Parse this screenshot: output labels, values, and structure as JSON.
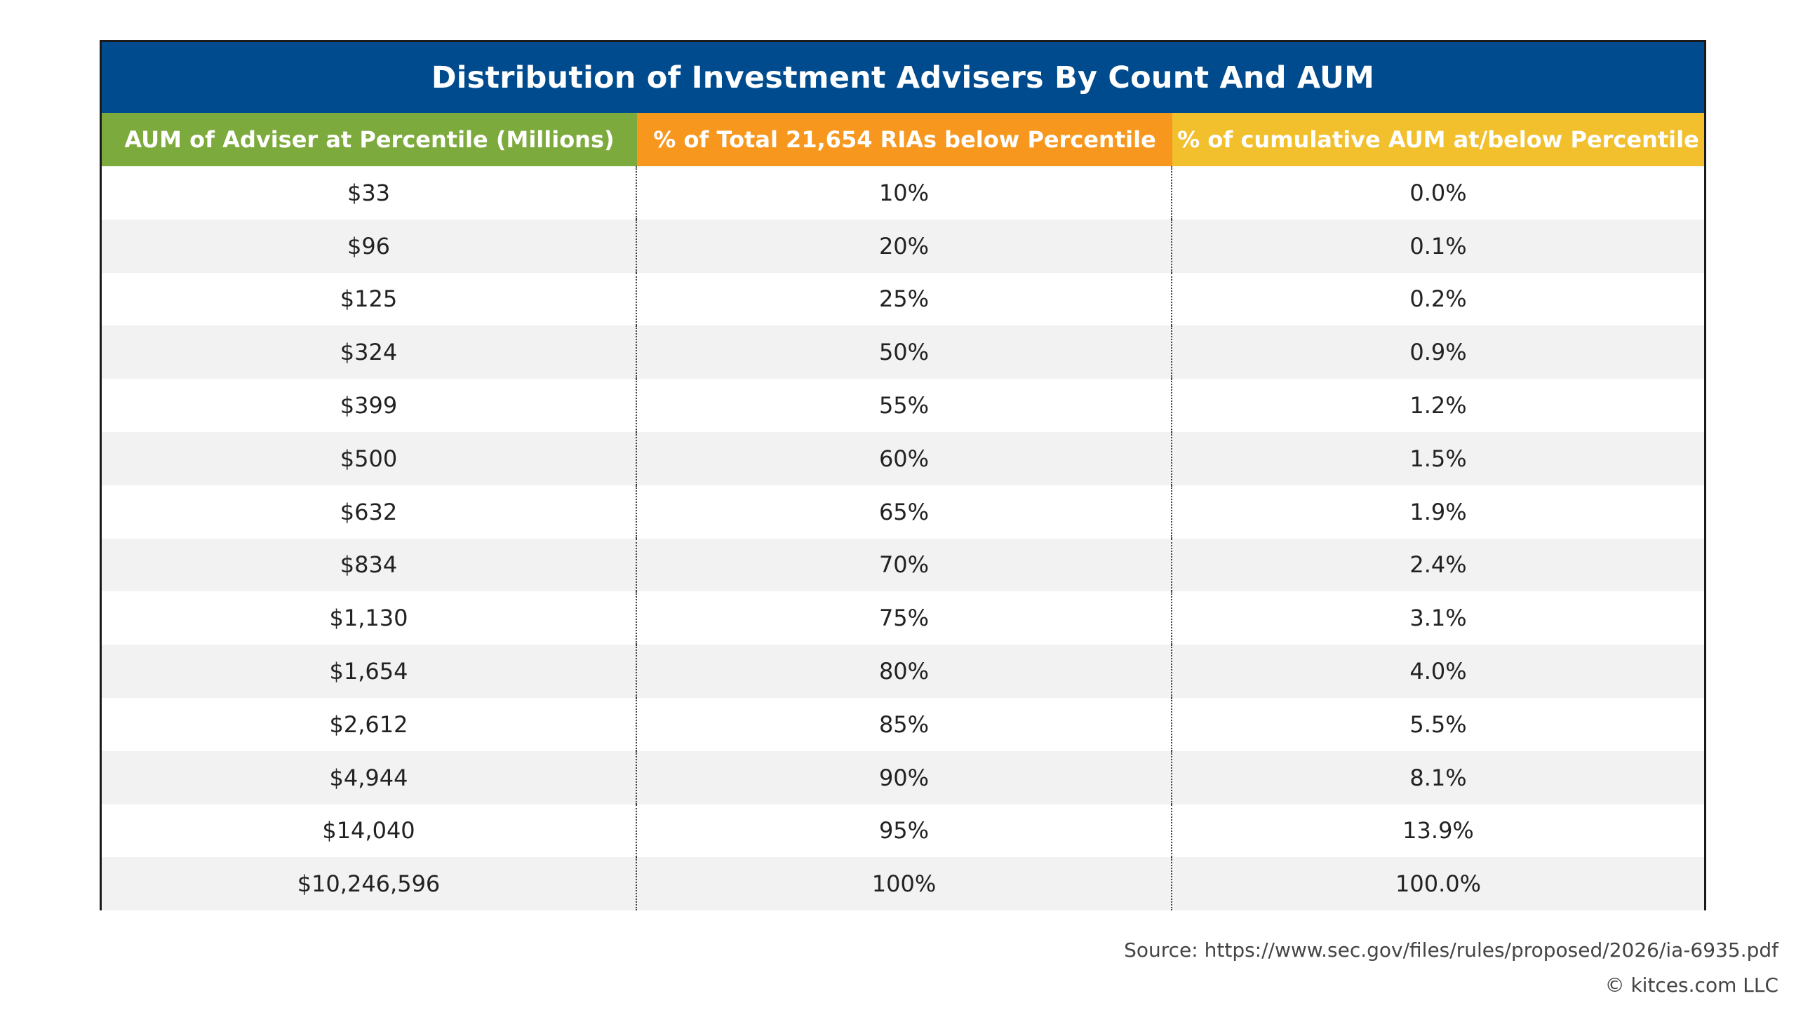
{
  "colors": {
    "title_bg": "#004b8d",
    "header_col0_bg": "#7daa3c",
    "header_col1_bg": "#f7971e",
    "header_col2_bg": "#f2bf2d",
    "row_alt_bg": "#f2f2f2"
  },
  "chart_data": {
    "type": "table",
    "title": "Distribution of Investment Advisers By Count And AUM",
    "columns": [
      "AUM of Adviser at Percentile (Millions)",
      "% of Total 21,654 RIAs below Percentile",
      "% of cumulative AUM at/below Percentile"
    ],
    "rows": [
      [
        "$33",
        "10%",
        "0.0%"
      ],
      [
        "$96",
        "20%",
        "0.1%"
      ],
      [
        "$125",
        "25%",
        "0.2%"
      ],
      [
        "$324",
        "50%",
        "0.9%"
      ],
      [
        "$399",
        "55%",
        "1.2%"
      ],
      [
        "$500",
        "60%",
        "1.5%"
      ],
      [
        "$632",
        "65%",
        "1.9%"
      ],
      [
        "$834",
        "70%",
        "2.4%"
      ],
      [
        "$1,130",
        "75%",
        "3.1%"
      ],
      [
        "$1,654",
        "80%",
        "4.0%"
      ],
      [
        "$2,612",
        "85%",
        "5.5%"
      ],
      [
        "$4,944",
        "90%",
        "8.1%"
      ],
      [
        "$14,040",
        "95%",
        "13.9%"
      ],
      [
        "$10,246,596",
        "100%",
        "100.0%"
      ]
    ]
  },
  "footer": {
    "source": "Source: https://www.sec.gov/files/rules/proposed/2026/ia-6935.pdf",
    "copyright": "© kitces.com LLC"
  }
}
